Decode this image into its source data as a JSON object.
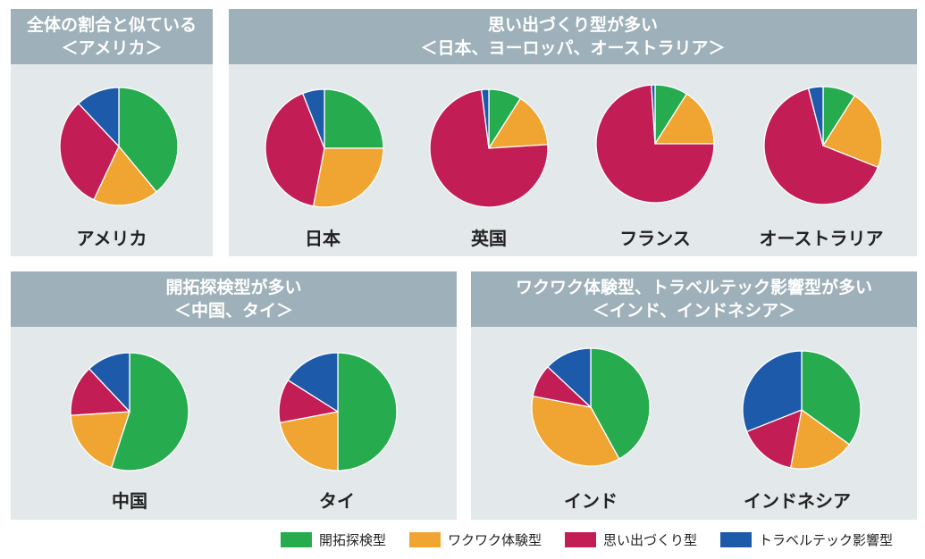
{
  "colors": {
    "kaitaku": "#27ab4f",
    "wakuwaku": "#f0a532",
    "omoide": "#c21e55",
    "travel": "#1e5aaa",
    "panel_bg": "#e3e8eb",
    "panel_head": "#9eb0b9"
  },
  "panels": [
    {
      "title1": "全体の割合と似ている",
      "title2": "＜アメリカ＞"
    },
    {
      "title1": "思い出づくり型が多い",
      "title2": "＜日本、ヨーロッパ、オーストラリア＞"
    },
    {
      "title1": "開拓探検型が多い",
      "title2": "＜中国、タイ＞"
    },
    {
      "title1": "ワクワク体験型、トラベルテック影響型が多い",
      "title2": "＜インド、インドネシア＞"
    }
  ],
  "legend": [
    "開拓探検型",
    "ワクワク体験型",
    "思い出づくり型",
    "トラベルテック影響型"
  ],
  "chart_data": {
    "type": "pie",
    "categories": [
      "開拓探検型",
      "ワクワク体験型",
      "思い出づくり型",
      "トラベルテック影響型"
    ],
    "charts": [
      {
        "name": "アメリカ",
        "values": [
          39,
          18,
          31,
          12
        ]
      },
      {
        "name": "日本",
        "values": [
          25,
          28,
          41,
          6
        ]
      },
      {
        "name": "英国",
        "values": [
          9,
          15,
          74,
          2
        ]
      },
      {
        "name": "フランス",
        "values": [
          9,
          16,
          74,
          1
        ]
      },
      {
        "name": "オーストラリア",
        "values": [
          9,
          22,
          65,
          4
        ]
      },
      {
        "name": "中国",
        "values": [
          55,
          19,
          14,
          12
        ]
      },
      {
        "name": "タイ",
        "values": [
          50,
          22,
          12,
          16
        ]
      },
      {
        "name": "インド",
        "values": [
          42,
          36,
          9,
          13
        ]
      },
      {
        "name": "インドネシア",
        "values": [
          35,
          18,
          16,
          31
        ]
      }
    ]
  }
}
